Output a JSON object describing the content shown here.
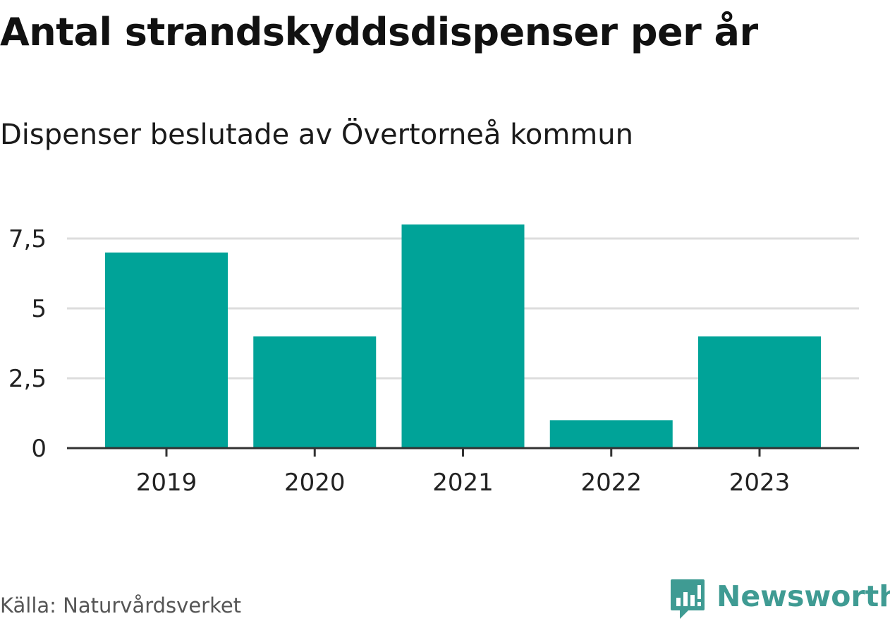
{
  "title": "Antal strandskyddsdispenser per år",
  "subtitle": "Dispenser beslutade av Övertorneå kommun",
  "source": "Källa: Naturvårdsverket",
  "brand": {
    "name": "Newsworthy",
    "icon": "newsworthy-logo-icon",
    "color": "#3f9b93"
  },
  "colors": {
    "bar": "#00a398",
    "grid": "#dddddd",
    "axis": "#333333",
    "tick_text": "#222222"
  },
  "chart_data": {
    "type": "bar",
    "categories": [
      "2019",
      "2020",
      "2021",
      "2022",
      "2023"
    ],
    "values": [
      7,
      4,
      8,
      1,
      4
    ],
    "ylim": [
      0,
      8.1
    ],
    "yticks": [
      0,
      2.5,
      5,
      7.5
    ],
    "ytick_labels": [
      "0",
      "2,5",
      "5",
      "7,5"
    ],
    "grid": true,
    "legend": "none",
    "xlabel": "",
    "ylabel": ""
  }
}
